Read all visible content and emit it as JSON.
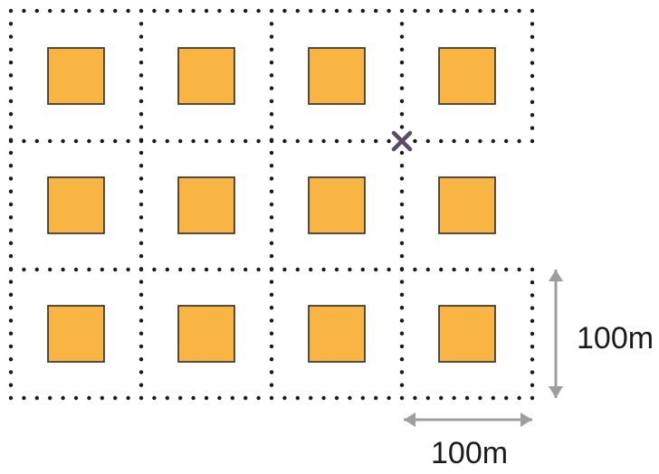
{
  "grid": {
    "columns": 4,
    "rows": 3
  },
  "colors": {
    "block_fill": "#F9B544",
    "block_stroke": "#2a2a2a",
    "path_dots": "#1a1a1a",
    "marker": "#5B4A6E",
    "dimension_arrow": "#9e9e9e",
    "label_text": "#1a1a1a"
  },
  "marker": {
    "icon": "cross-icon",
    "intersection": {
      "row": 1,
      "col": 3
    }
  },
  "dimensions": {
    "vertical_label": "100m",
    "horizontal_label": "100m"
  }
}
